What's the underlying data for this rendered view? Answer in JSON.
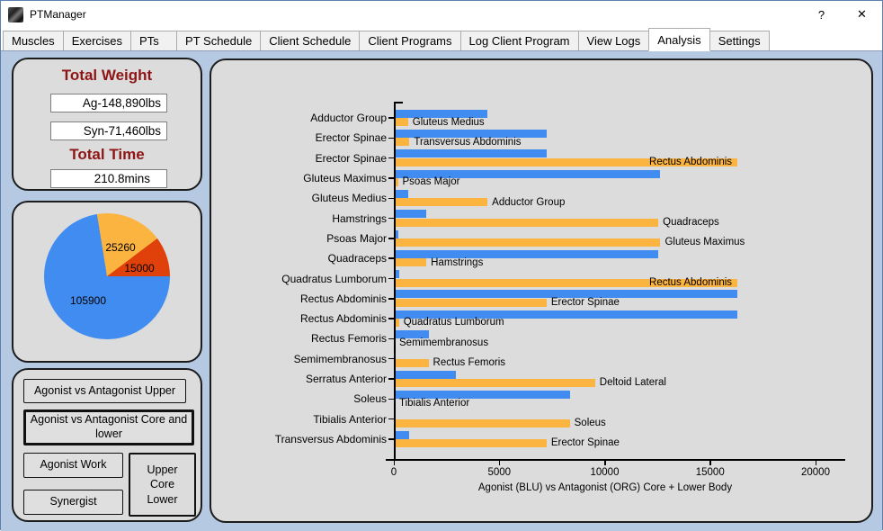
{
  "window": {
    "title": "PTManager",
    "help_glyph": "?",
    "close_glyph": "✕"
  },
  "tabs": {
    "items": [
      "Muscles",
      "Exercises",
      "PTs",
      "PT Schedule",
      "Client Schedule",
      "Client Programs",
      "Log Client Program",
      "View Logs",
      "Analysis",
      "Settings"
    ],
    "selected": "Analysis"
  },
  "summary": {
    "weight_heading": "Total Weight",
    "agonist_weight": "Ag-148,890lbs",
    "synergist_weight": "Syn-71,460lbs",
    "time_heading": "Total Time",
    "total_time": "210.8mins"
  },
  "buttons": {
    "upper": "Agonist vs Antagonist Upper",
    "core_lower": "Agonist vs Antagonist Core and lower",
    "agonist_work": "Agonist Work",
    "synergist": "Synergist",
    "mode_box_lines": [
      "Upper",
      "Core",
      "Lower"
    ]
  },
  "colors": {
    "agonist_blue": "#418CF0",
    "antagonist_orange": "#FCB441",
    "pie_red": "#E0400A",
    "heading_red": "#8E1515",
    "panel_gray": "#DCDCDC",
    "page_blue": "#B5C9E3"
  },
  "chart_data": [
    {
      "type": "pie",
      "values": [
        105900,
        25260,
        15000
      ],
      "labels": [
        "105900",
        "25260",
        "15000"
      ],
      "colors": [
        "#418CF0",
        "#FCB441",
        "#E0400A"
      ],
      "start_angle": "east",
      "direction": "clockwise",
      "label_positions": [
        {
          "x": 83,
          "y": 109
        },
        {
          "x": 119,
          "y": 50
        },
        {
          "x": 140,
          "y": 73
        }
      ]
    },
    {
      "type": "bar",
      "orientation": "horizontal",
      "xlabel": "Agonist (BLU) vs Antagonist (ORG) Core + Lower Body",
      "xlim": [
        0,
        20000
      ],
      "xticks": [
        0,
        5000,
        10000,
        15000,
        20000
      ],
      "series_names": [
        "Agonist (BLU)",
        "Antagonist (ORG)"
      ],
      "rows": [
        {
          "category": "Adductor Group",
          "agonist": 4400,
          "antagonist": 630,
          "antagonist_label": "Gluteus Medius"
        },
        {
          "category": "Erector Spinae",
          "agonist": 7200,
          "antagonist": 700,
          "antagonist_label": "Transversus Abdominis"
        },
        {
          "category": "Erector Spinae",
          "agonist": 7200,
          "antagonist": 16250,
          "antagonist_label": "Rectus Abdominis",
          "label_inside": true
        },
        {
          "category": "Gluteus Maximus",
          "agonist": 12600,
          "antagonist": 150,
          "antagonist_label": "Psoas Major"
        },
        {
          "category": "Gluteus Medius",
          "agonist": 630,
          "antagonist": 4400,
          "antagonist_label": "Adductor Group"
        },
        {
          "category": "Hamstrings",
          "agonist": 1500,
          "antagonist": 12500,
          "antagonist_label": "Quadraceps"
        },
        {
          "category": "Psoas Major",
          "agonist": 150,
          "antagonist": 12600,
          "antagonist_label": "Gluteus Maximus"
        },
        {
          "category": "Quadraceps",
          "agonist": 12500,
          "antagonist": 1500,
          "antagonist_label": "Hamstrings"
        },
        {
          "category": "Quadratus Lumborum",
          "agonist": 200,
          "antagonist": 16250,
          "antagonist_label": "Rectus Abdominis",
          "label_inside": true
        },
        {
          "category": "Rectus Abdominis",
          "agonist": 16250,
          "antagonist": 7200,
          "antagonist_label": "Erector Spinae"
        },
        {
          "category": "Rectus Abdominis",
          "agonist": 16250,
          "antagonist": 200,
          "antagonist_label": "Quadratus Lumborum"
        },
        {
          "category": "Rectus Femoris",
          "agonist": 1600,
          "antagonist": 0,
          "antagonist_label": "Semimembranosus"
        },
        {
          "category": "Semimembranosus",
          "agonist": 0,
          "antagonist": 1600,
          "antagonist_label": "Rectus Femoris"
        },
        {
          "category": "Serratus Anterior",
          "agonist": 2900,
          "antagonist": 9500,
          "antagonist_label": "Deltoid Lateral"
        },
        {
          "category": "Soleus",
          "agonist": 8300,
          "antagonist": 0,
          "antagonist_label": "Tibialis Anterior"
        },
        {
          "category": "Tibialis Anterior",
          "agonist": 0,
          "antagonist": 8300,
          "antagonist_label": "Soleus"
        },
        {
          "category": "Transversus Abdominis",
          "agonist": 700,
          "antagonist": 7200,
          "antagonist_label": "Erector Spinae"
        }
      ]
    }
  ]
}
